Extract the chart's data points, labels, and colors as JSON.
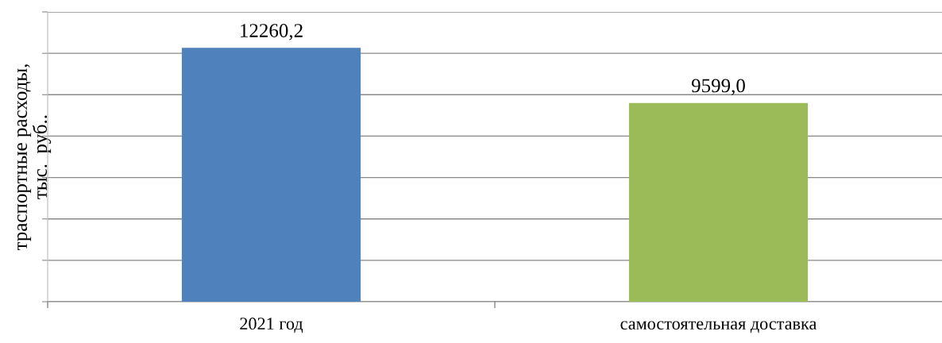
{
  "chart_data": {
    "type": "bar",
    "ylabel": "траспортные расходы,\nтыс.  руб..",
    "categories": [
      "2021 год",
      "самостоятельная доставка"
    ],
    "values": [
      12260.2,
      9599.0
    ],
    "value_labels": [
      "12260,2",
      "9599,0"
    ],
    "colors": [
      "#4f81bd",
      "#9bbb59"
    ],
    "ylim": [
      0,
      14000
    ],
    "yticks": [
      {
        "value": 0,
        "label": null
      },
      {
        "value": 2000,
        "label": null
      },
      {
        "value": 4000,
        "label": null
      },
      {
        "value": 6000,
        "label": null
      },
      {
        "value": 8000,
        "label": null
      },
      {
        "value": 10000,
        "label": null
      },
      {
        "value": 12000,
        "label": null
      },
      {
        "value": 14000,
        "label": null
      }
    ],
    "tick_labels": "x",
    "grid": "y"
  }
}
